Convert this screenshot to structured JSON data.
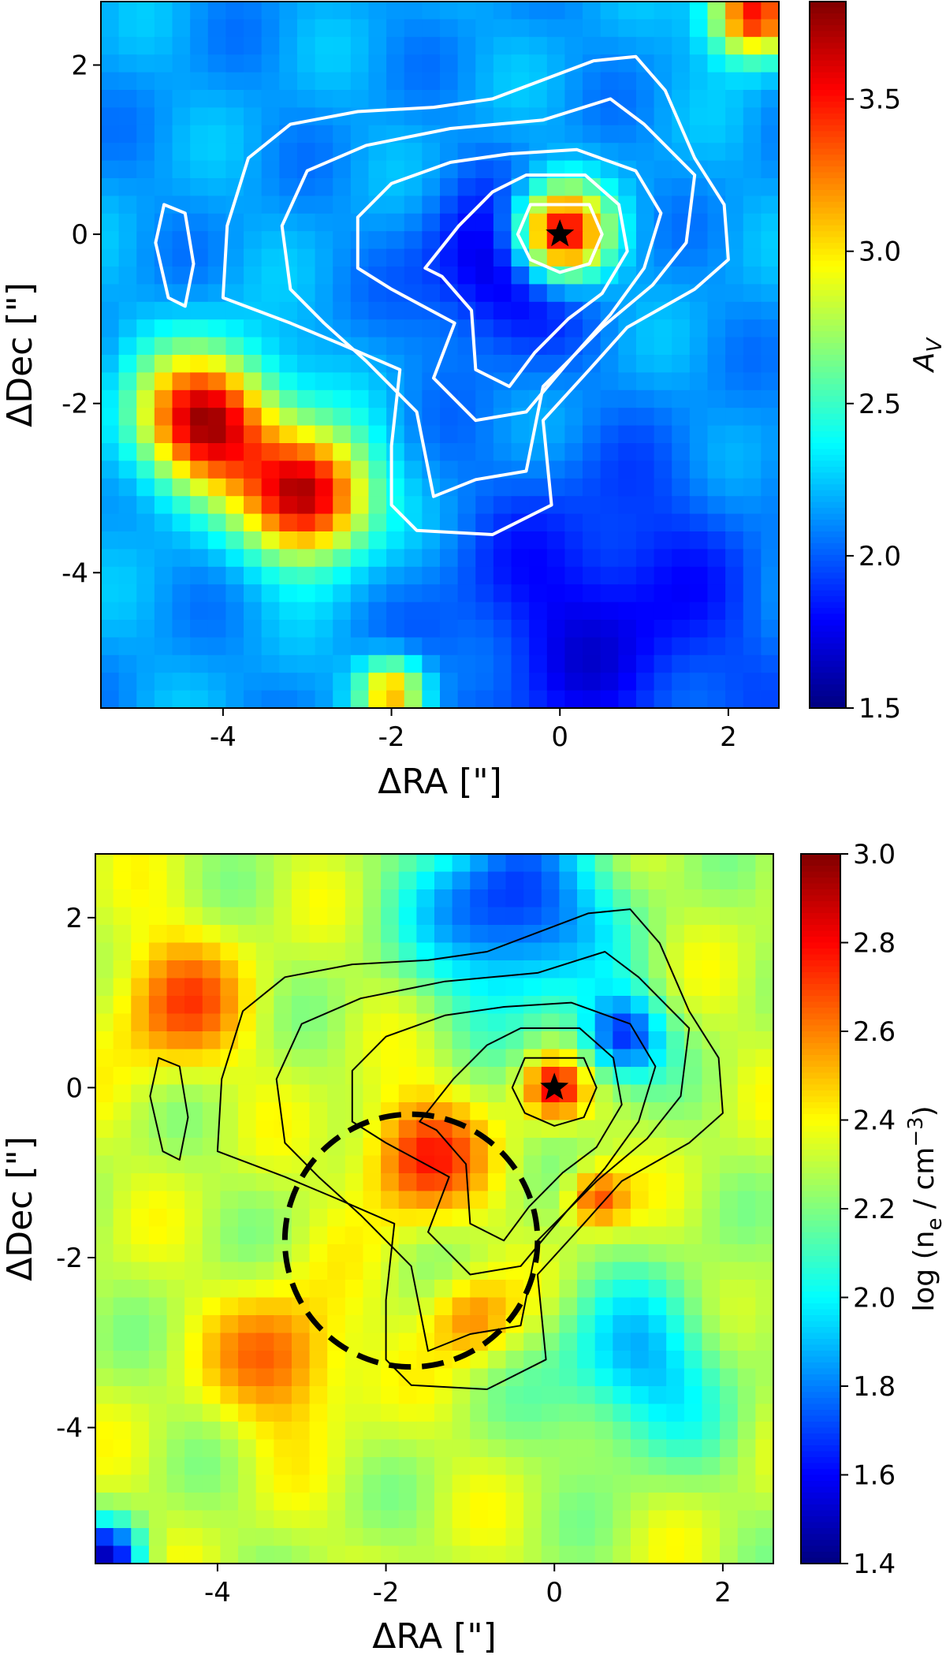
{
  "chart_data": [
    {
      "type": "heatmap",
      "xlabel": "ΔRA [\"]",
      "ylabel": "ΔDec [\"]",
      "xlim": [
        -5.45,
        2.6
      ],
      "ylim": [
        -5.6,
        2.75
      ],
      "xticks": [
        -4,
        -2,
        0,
        2
      ],
      "xtick_labels": [
        "-4",
        "-2",
        "0",
        "2"
      ],
      "yticks": [
        2,
        0,
        -2,
        -4
      ],
      "ytick_labels": [
        "2",
        "0",
        "-2",
        "-4"
      ],
      "colorbar": {
        "label": "A_V",
        "label_main": "A",
        "label_sub": "V",
        "range": [
          1.5,
          3.82
        ],
        "ticks": [
          1.5,
          2.0,
          2.5,
          3.0,
          3.5
        ],
        "tick_labels": [
          "1.5",
          "2.0",
          "2.5",
          "3.0",
          "3.5"
        ],
        "colormap": "jet"
      },
      "contour_color": "#ffffff",
      "star": {
        "x": 0,
        "y": 0,
        "color": "#000000"
      },
      "z_features": {
        "background": 2.15,
        "blobs": [
          {
            "x": 0.0,
            "y": 0.0,
            "peak": 3.75,
            "width": 0.55
          },
          {
            "x": -4.2,
            "y": -2.2,
            "peak": 3.75,
            "width": 0.8
          },
          {
            "x": -3.0,
            "y": -3.1,
            "peak": 3.75,
            "width": 0.75
          },
          {
            "x": 2.3,
            "y": 2.6,
            "peak": 3.6,
            "width": 0.5
          },
          {
            "x": -2.0,
            "y": -5.4,
            "peak": 3.2,
            "width": 0.4
          }
        ],
        "lows": [
          {
            "x": -0.7,
            "y": -0.4,
            "depth": 1.55,
            "width": 0.9
          },
          {
            "x": 0.5,
            "y": -4.6,
            "depth": 1.7,
            "width": 1.8
          }
        ]
      }
    },
    {
      "type": "heatmap",
      "xlabel": "ΔRA [\"]",
      "ylabel": "ΔDec [\"]",
      "xlim": [
        -5.45,
        2.6
      ],
      "ylim": [
        -5.6,
        2.75
      ],
      "xticks": [
        -4,
        -2,
        0,
        2
      ],
      "xtick_labels": [
        "-4",
        "-2",
        "0",
        "2"
      ],
      "yticks": [
        2,
        0,
        -2,
        -4
      ],
      "ytick_labels": [
        "2",
        "0",
        "-2",
        "-4"
      ],
      "colorbar": {
        "label": "log (n_e / cm^-3)",
        "label_pre": "log (n",
        "label_sub": "e",
        "label_mid": " / cm",
        "label_sup": "−3",
        "label_post": ")",
        "range": [
          1.4,
          3.0
        ],
        "ticks": [
          1.4,
          1.6,
          1.8,
          2.0,
          2.2,
          2.4,
          2.6,
          2.8,
          3.0
        ],
        "tick_labels": [
          "1.4",
          "1.6",
          "1.8",
          "2.0",
          "2.2",
          "2.4",
          "2.6",
          "2.8",
          "3.0"
        ],
        "colormap": "jet"
      },
      "contour_color": "#000000",
      "star": {
        "x": 0,
        "y": 0,
        "color": "#000000"
      },
      "dashed_circle": {
        "x": -1.7,
        "y": -1.8,
        "r": 1.5
      },
      "z_features": {
        "background": 2.3,
        "blobs": [
          {
            "x": -4.5,
            "y": 1.0,
            "peak": 2.65,
            "width": 0.8
          },
          {
            "x": -1.6,
            "y": -0.8,
            "peak": 2.75,
            "width": 0.7
          },
          {
            "x": -3.2,
            "y": -3.2,
            "peak": 2.65,
            "width": 0.8
          },
          {
            "x": 0.0,
            "y": 0.0,
            "peak": 2.8,
            "width": 0.35
          },
          {
            "x": 0.5,
            "y": -1.3,
            "peak": 2.7,
            "width": 0.35
          },
          {
            "x": -1.0,
            "y": -2.7,
            "peak": 2.6,
            "width": 0.5
          }
        ],
        "lows": [
          {
            "x": -0.5,
            "y": 2.1,
            "depth": 1.55,
            "width": 1.1
          },
          {
            "x": 0.8,
            "y": 0.6,
            "depth": 1.6,
            "width": 0.5
          },
          {
            "x": 1.0,
            "y": -3.3,
            "depth": 1.85,
            "width": 1.0
          },
          {
            "x": -5.3,
            "y": -5.5,
            "depth": 1.5,
            "width": 0.4
          }
        ]
      }
    }
  ],
  "contours": [
    [
      [
        -0.35,
        0.35
      ],
      [
        0.35,
        0.35
      ],
      [
        0.5,
        0.0
      ],
      [
        0.35,
        -0.35
      ],
      [
        0.0,
        -0.45
      ],
      [
        -0.35,
        -0.3
      ],
      [
        -0.5,
        0.0
      ]
    ],
    [
      [
        -0.4,
        0.7
      ],
      [
        0.3,
        0.7
      ],
      [
        0.7,
        0.35
      ],
      [
        0.8,
        -0.2
      ],
      [
        0.5,
        -0.7
      ],
      [
        0.1,
        -1.0
      ],
      [
        -0.3,
        -1.4
      ],
      [
        -0.6,
        -1.8
      ],
      [
        -1.0,
        -1.6
      ],
      [
        -1.05,
        -0.9
      ],
      [
        -1.4,
        -0.5
      ],
      [
        -1.6,
        -0.4
      ],
      [
        -1.2,
        0.1
      ],
      [
        -0.8,
        0.5
      ]
    ],
    [
      [
        -0.6,
        0.95
      ],
      [
        0.2,
        1.0
      ],
      [
        0.9,
        0.75
      ],
      [
        1.2,
        0.25
      ],
      [
        1.0,
        -0.4
      ],
      [
        0.6,
        -0.95
      ],
      [
        0.15,
        -1.45
      ],
      [
        -0.4,
        -2.1
      ],
      [
        -1.0,
        -2.2
      ],
      [
        -1.5,
        -1.7
      ],
      [
        -1.25,
        -1.05
      ],
      [
        -2.0,
        -0.65
      ],
      [
        -2.4,
        -0.4
      ],
      [
        -2.4,
        0.2
      ],
      [
        -2.0,
        0.6
      ],
      [
        -1.3,
        0.85
      ]
    ],
    [
      [
        -1.3,
        1.25
      ],
      [
        -0.2,
        1.35
      ],
      [
        0.6,
        1.6
      ],
      [
        1.0,
        1.3
      ],
      [
        1.6,
        0.7
      ],
      [
        1.5,
        -0.1
      ],
      [
        1.1,
        -0.6
      ],
      [
        0.5,
        -1.1
      ],
      [
        -0.2,
        -1.8
      ],
      [
        -0.4,
        -2.8
      ],
      [
        -1.0,
        -2.9
      ],
      [
        -1.5,
        -3.1
      ],
      [
        -1.7,
        -2.1
      ],
      [
        -2.3,
        -1.5
      ],
      [
        -2.8,
        -1.05
      ],
      [
        -3.2,
        -0.65
      ],
      [
        -3.3,
        0.1
      ],
      [
        -3.0,
        0.75
      ],
      [
        -2.3,
        1.05
      ]
    ],
    [
      [
        -0.8,
        1.6
      ],
      [
        0.4,
        2.05
      ],
      [
        0.9,
        2.1
      ],
      [
        1.25,
        1.7
      ],
      [
        1.6,
        0.9
      ],
      [
        1.95,
        0.35
      ],
      [
        2.0,
        -0.3
      ],
      [
        1.6,
        -0.65
      ],
      [
        0.8,
        -1.1
      ],
      [
        0.35,
        -1.6
      ],
      [
        -0.2,
        -2.2
      ],
      [
        -0.1,
        -3.2
      ],
      [
        -0.8,
        -3.55
      ],
      [
        -1.7,
        -3.5
      ],
      [
        -2.0,
        -3.2
      ],
      [
        -2.0,
        -2.5
      ],
      [
        -1.9,
        -1.6
      ],
      [
        -2.6,
        -1.3
      ],
      [
        -3.2,
        -1.05
      ],
      [
        -4.0,
        -0.75
      ],
      [
        -3.95,
        0.1
      ],
      [
        -3.7,
        0.9
      ],
      [
        -3.2,
        1.3
      ],
      [
        -2.4,
        1.45
      ],
      [
        -1.5,
        1.5
      ]
    ],
    [
      [
        -4.7,
        0.35
      ],
      [
        -4.45,
        0.25
      ],
      [
        -4.35,
        -0.35
      ],
      [
        -4.45,
        -0.85
      ],
      [
        -4.65,
        -0.75
      ],
      [
        -4.8,
        -0.1
      ]
    ]
  ]
}
